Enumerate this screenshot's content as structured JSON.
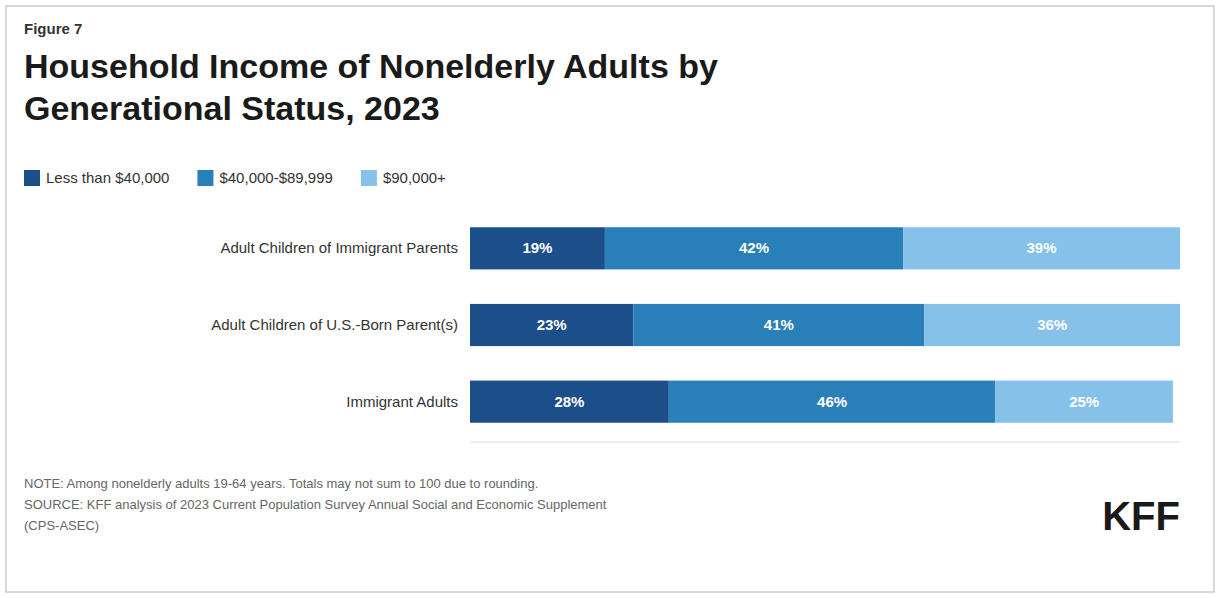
{
  "chart_data": {
    "type": "bar",
    "orientation": "horizontal",
    "stacked": true,
    "data_labels": true,
    "tick_labels": "y",
    "grid": false,
    "legend": "upper left",
    "title": "Household Income of Nonelderly Adults by\nGenerational Status, 2023",
    "annotations": [
      "Figure 7",
      "NOTE: Among nonelderly adults 19-64 years. Totals may not sum to 100 due to rounding.\nSOURCE: KFF analysis of 2023 Current Population Survey Annual Social and Economic Supplement\n(CPS-ASEC)",
      "KFF"
    ],
    "categories": [
      "Adult Children of Immigrant Parents",
      "Adult Children of U.S.-Born Parent(s)",
      "Immigrant Adults"
    ],
    "series": [
      {
        "name": "Less than $40,000",
        "color": "#1c4f8a",
        "values": [
          19,
          23,
          28
        ],
        "value_labels": [
          "19%",
          "23%",
          "28%"
        ]
      },
      {
        "name": "$40,000-$89,999",
        "color": "#2980b9",
        "values": [
          42,
          41,
          46
        ],
        "value_labels": [
          "42%",
          "41%",
          "46%"
        ]
      },
      {
        "name": "$90,000+",
        "color": "#85c1e9",
        "values": [
          39,
          36,
          25
        ],
        "value_labels": [
          "39%",
          "36%",
          "25%"
        ]
      }
    ],
    "xlim": [
      0,
      100
    ]
  }
}
